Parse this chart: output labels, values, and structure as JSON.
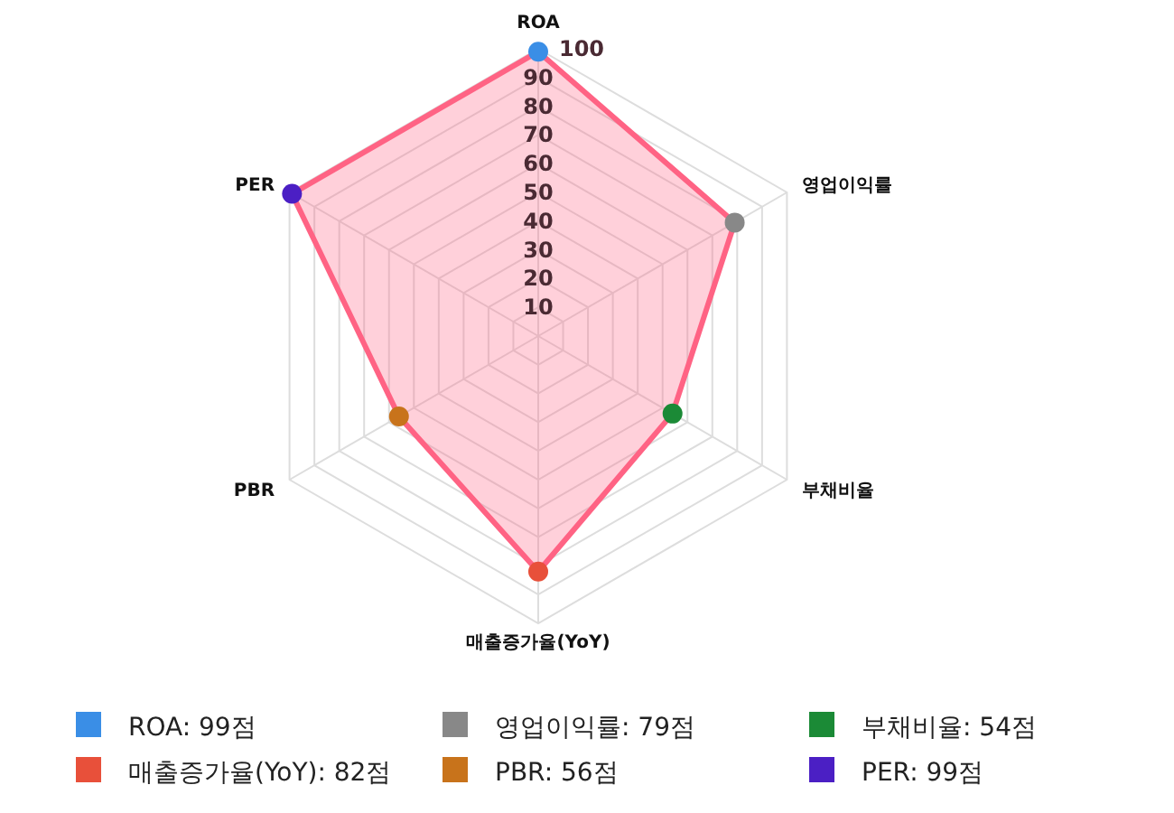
{
  "chart_data": {
    "type": "radar",
    "categories": [
      "ROA",
      "영업이익률",
      "부채비율",
      "매출증가율(YoY)",
      "PBR",
      "PER"
    ],
    "series": [
      {
        "color": "#ff6384",
        "values": [
          99,
          79,
          54,
          82,
          56,
          99
        ],
        "colors": [
          "#3a8ee6",
          "#888888",
          "#1b8a36",
          "#e8503a",
          "#c8731b",
          "#4b1fc4"
        ]
      }
    ],
    "ylim": [
      0,
      100
    ],
    "yticks": [
      10,
      20,
      30,
      40,
      50,
      60,
      70,
      80,
      90,
      100
    ],
    "grid": true,
    "marker": "circle",
    "annotations": [
      "ROA: 99점",
      "영업이익률: 79점",
      "부채비율: 54점",
      "매출증가율(YoY): 82점",
      "PBR: 56점",
      "PER: 99점"
    ]
  }
}
